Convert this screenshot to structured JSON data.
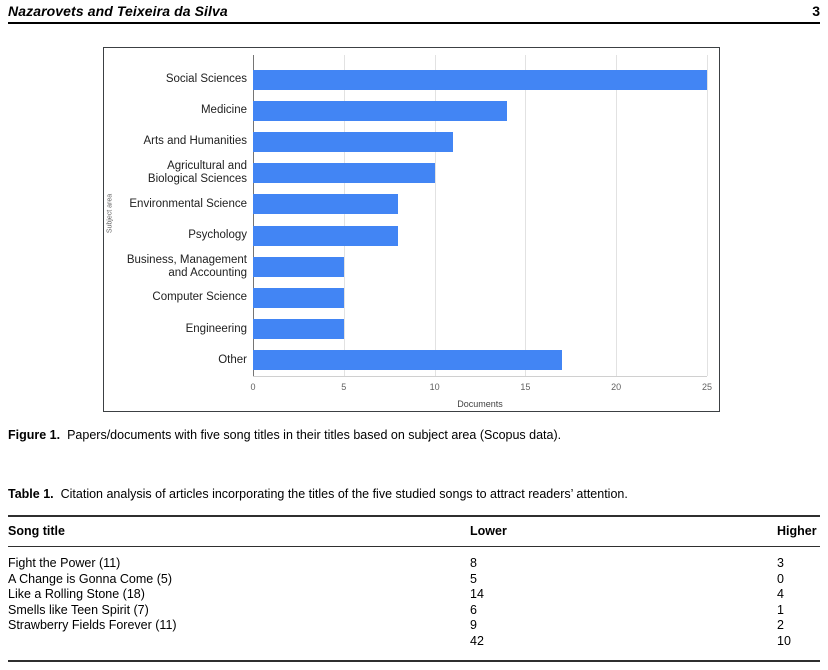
{
  "header": {
    "running_title": "Nazarovets and Teixeira da Silva",
    "page_number": "3"
  },
  "figure": {
    "caption_label": "Figure 1.",
    "caption_text": "Papers/documents with five song titles in their titles based on subject area (Scopus data)."
  },
  "chart_data": {
    "type": "bar",
    "orientation": "horizontal",
    "title": "",
    "categories": [
      "Social Sciences",
      "Medicine",
      "Arts and Humanities",
      "Agricultural and\nBiological Sciences",
      "Environmental Science",
      "Psychology",
      "Business, Management\nand Accounting",
      "Computer Science",
      "Engineering",
      "Other"
    ],
    "values": [
      25,
      14,
      11,
      10,
      8,
      8,
      5,
      5,
      5,
      17
    ],
    "xlabel": "Documents",
    "ylabel": "Subject area",
    "xlim": [
      0,
      25
    ],
    "xticks": [
      0,
      5,
      10,
      15,
      20,
      25
    ],
    "grid": true,
    "legend": "none",
    "bar_color": "#4285f4"
  },
  "table": {
    "caption_label": "Table 1.",
    "caption_text": "Citation analysis of articles incorporating the titles of the five studied songs to attract readers’ attention.",
    "columns": [
      "Song title",
      "Lower",
      "Higher"
    ],
    "rows": [
      [
        "Fight the Power (11)",
        "8",
        "3"
      ],
      [
        "A Change is Gonna Come (5)",
        "5",
        "0"
      ],
      [
        "Like a Rolling Stone (18)",
        "14",
        "4"
      ],
      [
        "Smells like Teen Spirit (7)",
        "6",
        "1"
      ],
      [
        "Strawberry Fields Forever (11)",
        "9",
        "2"
      ],
      [
        "",
        "42",
        "10"
      ]
    ]
  }
}
